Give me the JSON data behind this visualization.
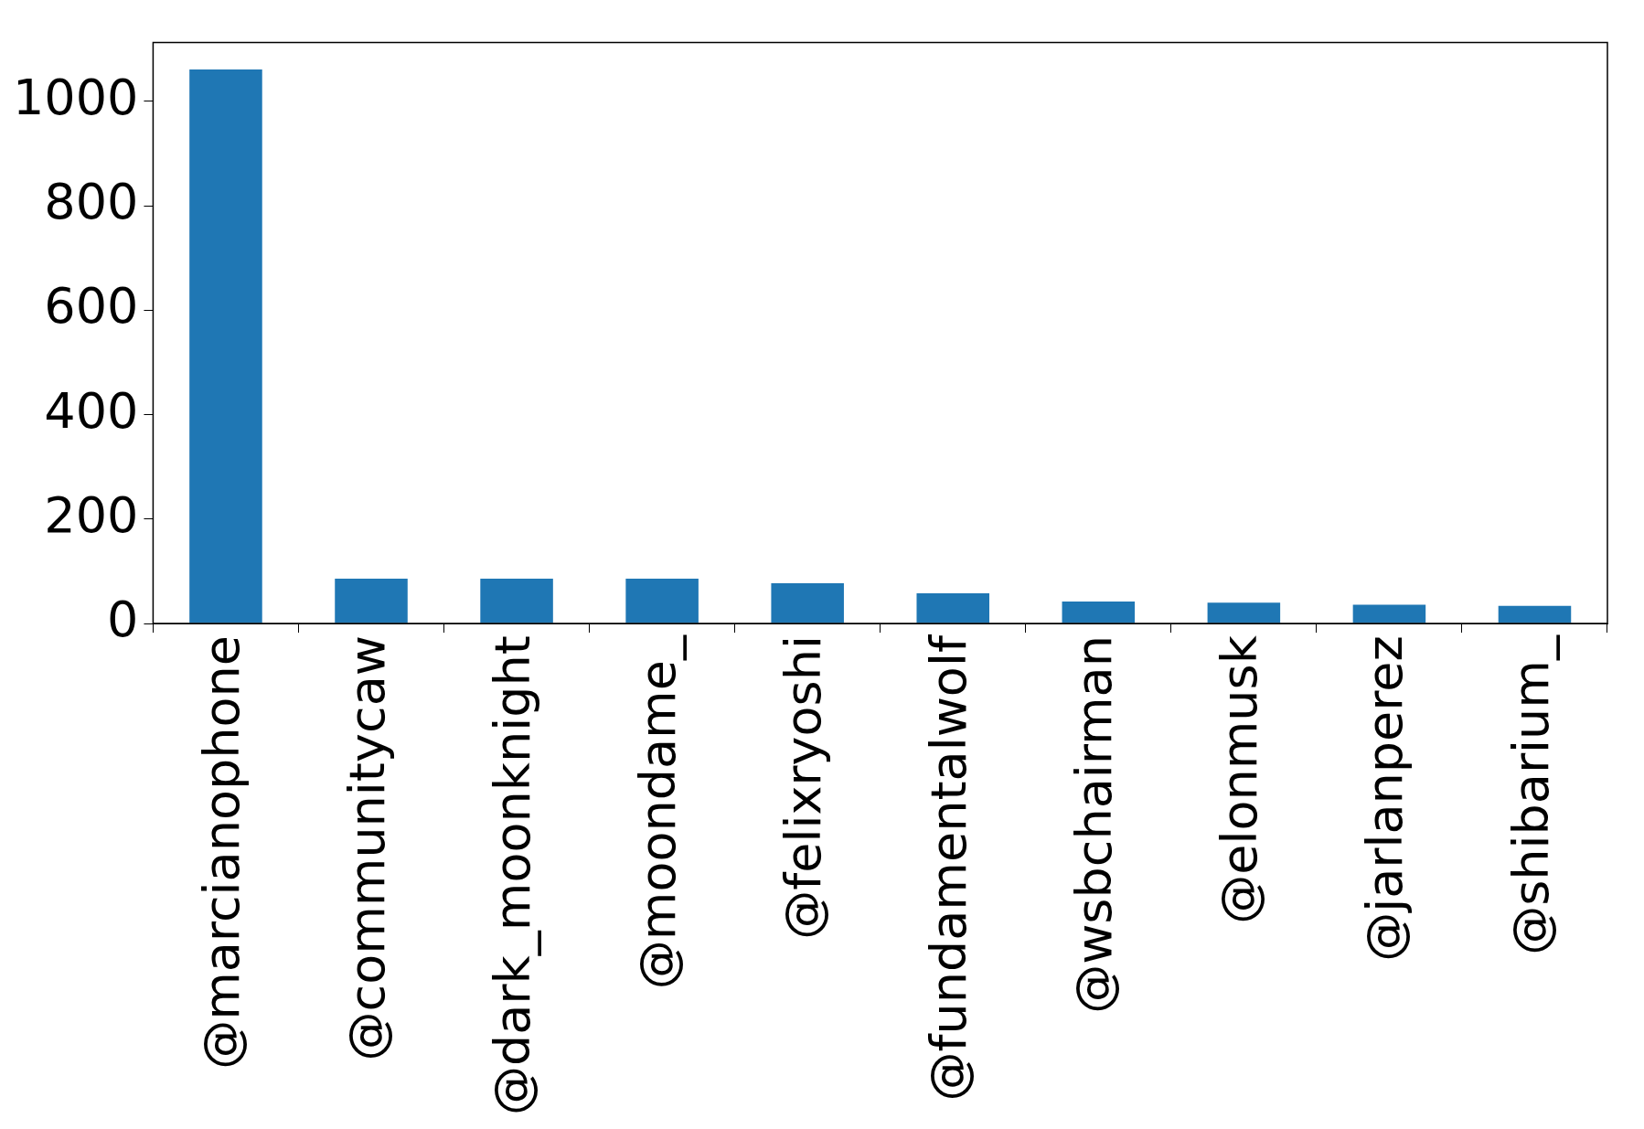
{
  "chart_data": {
    "type": "bar",
    "categories": [
      "@marcianophone",
      "@communitycaw",
      "@dark_moonknight",
      "@moondame_",
      "@felixryoshi",
      "@fundamentalwolf",
      "@wsbchairman",
      "@elonmusk",
      "@jarlanperez",
      "@shibarium_"
    ],
    "values": [
      1061,
      86,
      86,
      86,
      77,
      58,
      42,
      40,
      36,
      34
    ],
    "color": "#1f77b4",
    "ylim": [
      0,
      1113
    ],
    "yticks": [
      0,
      200,
      400,
      600,
      800,
      1000
    ],
    "grid": false,
    "legend": false
  }
}
